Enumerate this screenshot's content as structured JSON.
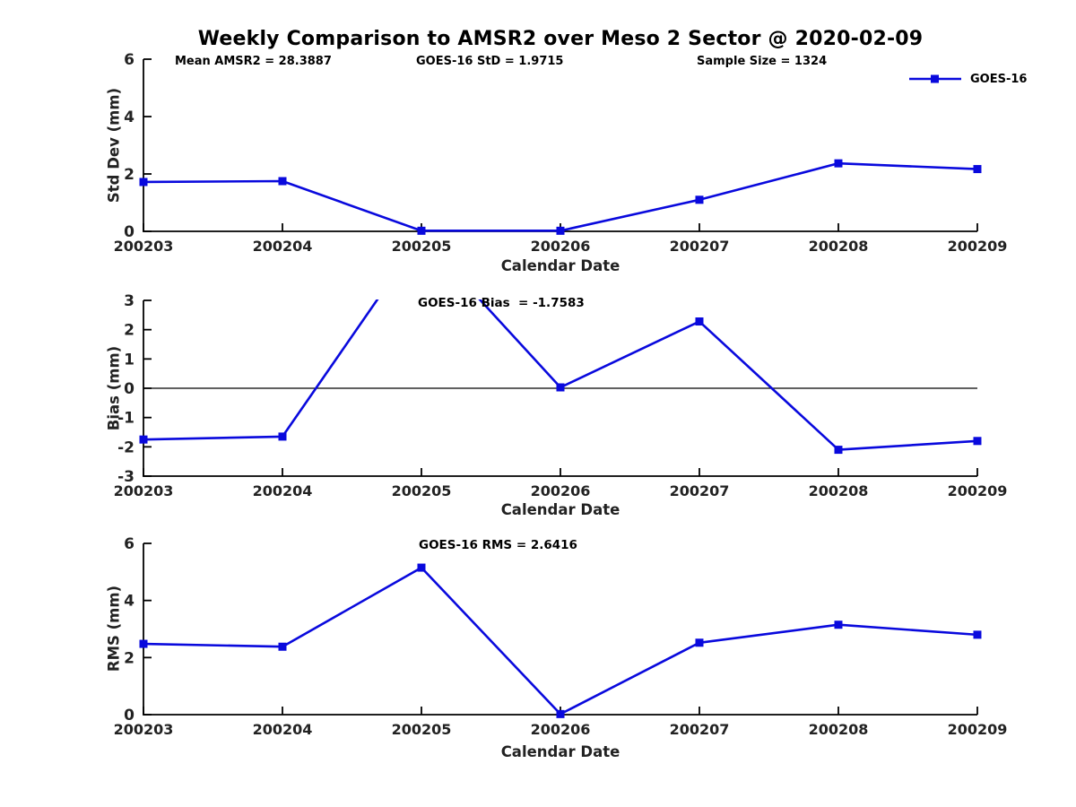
{
  "title": "Weekly Comparison to AMSR2 over Meso 2 Sector @ 2020-02-09",
  "stats": {
    "mean_amsr2": "Mean AMSR2 = 28.3887",
    "goes16_std": "GOES-16 StD = 1.9715",
    "sample_size": "Sample Size = 1324"
  },
  "legend": {
    "label": "GOES-16"
  },
  "colors": {
    "line": "#0909dd",
    "axis": "#000000",
    "zero_line": "#000000",
    "text": "#000000"
  },
  "chart_data": [
    {
      "type": "line",
      "panel": "std-dev",
      "x": [
        "200203",
        "200204",
        "200205",
        "200206",
        "200207",
        "200208",
        "200209"
      ],
      "series": [
        {
          "name": "GOES-16",
          "values": [
            1.72,
            1.75,
            0.02,
            0.02,
            1.1,
            2.37,
            2.17
          ]
        }
      ],
      "xlabel": "Calendar Date",
      "ylabel": "Std Dev (mm)",
      "ylim": [
        0,
        6
      ],
      "yticks": [
        0,
        2,
        4,
        6
      ],
      "zero_line": false,
      "annotation": "",
      "legend_position": "top-right-outside",
      "grid": false
    },
    {
      "type": "line",
      "panel": "bias",
      "x": [
        "200203",
        "200204",
        "200205",
        "200206",
        "200207",
        "200208",
        "200209"
      ],
      "series": [
        {
          "name": "GOES-16",
          "values": [
            -1.75,
            -1.65,
            5.2,
            0.03,
            2.28,
            -2.1,
            -1.8
          ]
        }
      ],
      "xlabel": "Calendar Date",
      "ylabel": "Bias (mm)",
      "ylim": [
        -3,
        3
      ],
      "yticks": [
        -3,
        -2,
        -1,
        0,
        1,
        2,
        3
      ],
      "zero_line": true,
      "annotation": "GOES-16 Bias  = -1.7583",
      "clipped_note": "200205 value exceeds y-axis max and is clipped at top of panel",
      "grid": false
    },
    {
      "type": "line",
      "panel": "rms",
      "x": [
        "200203",
        "200204",
        "200205",
        "200206",
        "200207",
        "200208",
        "200209"
      ],
      "series": [
        {
          "name": "GOES-16",
          "values": [
            2.48,
            2.38,
            5.15,
            0.02,
            2.52,
            3.15,
            2.8
          ]
        }
      ],
      "xlabel": "Calendar Date",
      "ylabel": "RMS (mm)",
      "ylim": [
        0,
        6
      ],
      "yticks": [
        0,
        2,
        4,
        6
      ],
      "zero_line": false,
      "annotation": "GOES-16 RMS = 2.6416",
      "grid": false
    }
  ]
}
